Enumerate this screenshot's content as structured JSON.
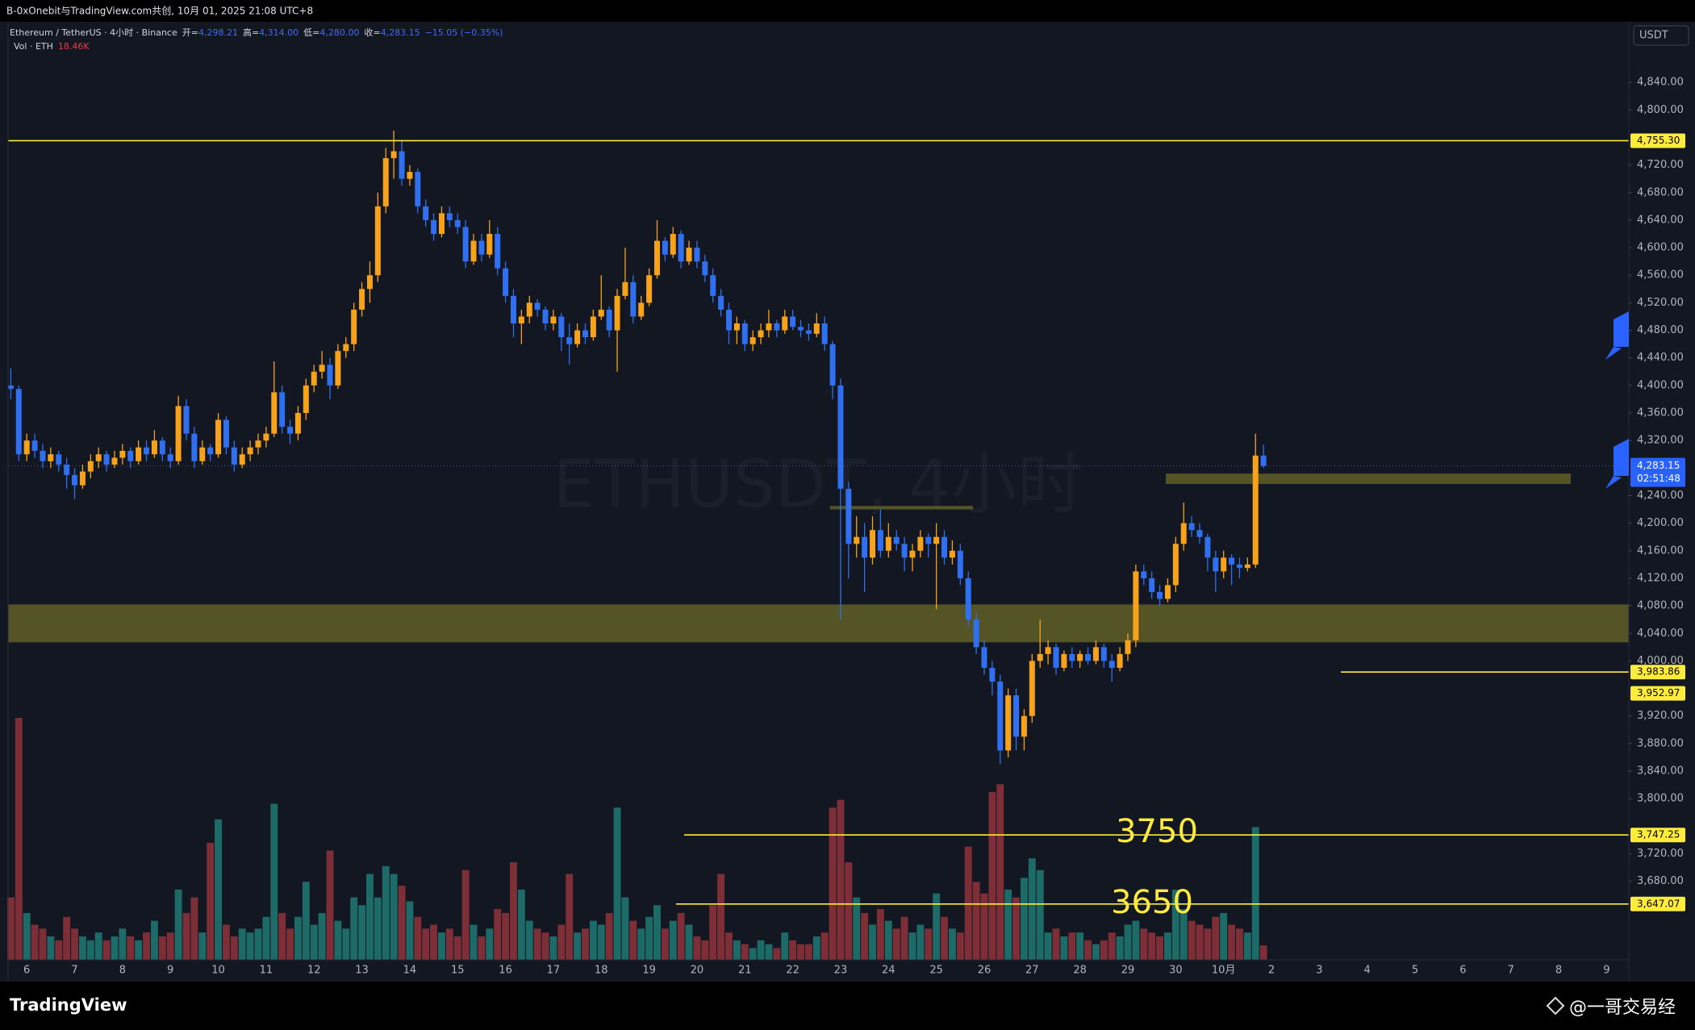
{
  "page": {
    "share_text": "B-0xOnebit与TradingView.com共创, 10月 01, 2025 21:08 UTC+8",
    "brand": "TradingView",
    "watermark_author": "@一哥交易经"
  },
  "chart_data": {
    "type": "candlestick",
    "symbol": "Ethereum / TetherUS · 4小时 · Binance",
    "open_label": "开=",
    "open": "4,298.21",
    "high_label": "高=",
    "high": "4,314.00",
    "low_label": "低=",
    "low": "4,280.00",
    "close_label": "收=",
    "close": "4,283.15",
    "change": "−15.05 (−0.35%)",
    "volume_label": "Vol · ETH",
    "volume_value": "18.46K",
    "watermark": "ETHUSDT, 4小时",
    "currency": "USDT",
    "up_color": "#f7a21b",
    "down_color": "#2f6ff0",
    "volume_up_color": "#1d6b68",
    "volume_down_color": "#7d2e36",
    "level_color": "#ffeb3b",
    "zone_color": "#6b6a2a",
    "ylim": [
      3566,
      4928
    ],
    "yticks": [
      {
        "value": 4840,
        "label": "4,840.00"
      },
      {
        "value": 4800,
        "label": "4,800.00"
      },
      {
        "value": 4720,
        "label": "4,720.00"
      },
      {
        "value": 4680,
        "label": "4,680.00"
      },
      {
        "value": 4640,
        "label": "4,640.00"
      },
      {
        "value": 4600,
        "label": "4,600.00"
      },
      {
        "value": 4560,
        "label": "4,560.00"
      },
      {
        "value": 4520,
        "label": "4,520.00"
      },
      {
        "value": 4480,
        "label": "4,480.00"
      },
      {
        "value": 4440,
        "label": "4,440.00"
      },
      {
        "value": 4400,
        "label": "4,400.00"
      },
      {
        "value": 4360,
        "label": "4,360.00"
      },
      {
        "value": 4320,
        "label": "4,320.00"
      },
      {
        "value": 4240,
        "label": "4,240.00"
      },
      {
        "value": 4200,
        "label": "4,200.00"
      },
      {
        "value": 4160,
        "label": "4,160.00"
      },
      {
        "value": 4120,
        "label": "4,120.00"
      },
      {
        "value": 4080,
        "label": "4,080.00"
      },
      {
        "value": 4040,
        "label": "4,040.00"
      },
      {
        "value": 4000,
        "label": "4,000.00"
      },
      {
        "value": 3920,
        "label": "3,920.00"
      },
      {
        "value": 3880,
        "label": "3,880.00"
      },
      {
        "value": 3840,
        "label": "3,840.00"
      },
      {
        "value": 3800,
        "label": "3,800.00"
      },
      {
        "value": 3720,
        "label": "3,720.00"
      },
      {
        "value": 3680,
        "label": "3,680.00"
      }
    ],
    "x_labels": [
      "6",
      "7",
      "8",
      "9",
      "10",
      "11",
      "12",
      "13",
      "14",
      "15",
      "16",
      "17",
      "18",
      "19",
      "20",
      "21",
      "22",
      "23",
      "24",
      "25",
      "26",
      "27",
      "28",
      "29",
      "30",
      "10月",
      "2",
      "3",
      "4",
      "5",
      "6",
      "7",
      "8",
      "9"
    ],
    "levels": [
      {
        "value": 4755.3,
        "label": "4,755.30"
      },
      {
        "value": 3983.86,
        "label": "3,983.86"
      },
      {
        "value": 3952.97,
        "label": "3,952.97"
      },
      {
        "value": 3747.25,
        "label": "3,747.25"
      },
      {
        "value": 3647.07,
        "label": "3,647.07"
      }
    ],
    "last_price": {
      "value": 4283.15,
      "label": "4,283.15",
      "countdown": "02:51:48"
    },
    "zones": [
      {
        "low": 4027,
        "high": 4082
      },
      {
        "low": 4257,
        "high": 4272
      },
      {
        "low": 4220,
        "high": 4225
      }
    ],
    "annotations": [
      "3750",
      "3650"
    ],
    "candles": [
      [
        4400,
        4425,
        4380,
        4395
      ],
      [
        4395,
        4400,
        4290,
        4300
      ],
      [
        4300,
        4330,
        4290,
        4320
      ],
      [
        4320,
        4330,
        4295,
        4305
      ],
      [
        4305,
        4315,
        4280,
        4290
      ],
      [
        4290,
        4310,
        4280,
        4300
      ],
      [
        4300,
        4305,
        4275,
        4285
      ],
      [
        4285,
        4295,
        4250,
        4270
      ],
      [
        4270,
        4280,
        4235,
        4255
      ],
      [
        4255,
        4285,
        4250,
        4275
      ],
      [
        4275,
        4300,
        4265,
        4290
      ],
      [
        4290,
        4310,
        4280,
        4300
      ],
      [
        4300,
        4305,
        4275,
        4285
      ],
      [
        4285,
        4305,
        4280,
        4295
      ],
      [
        4295,
        4315,
        4285,
        4305
      ],
      [
        4305,
        4310,
        4280,
        4290
      ],
      [
        4290,
        4320,
        4285,
        4310
      ],
      [
        4310,
        4320,
        4290,
        4300
      ],
      [
        4300,
        4335,
        4295,
        4320
      ],
      [
        4320,
        4325,
        4290,
        4300
      ],
      [
        4300,
        4310,
        4280,
        4290
      ],
      [
        4290,
        4385,
        4285,
        4370
      ],
      [
        4370,
        4380,
        4320,
        4330
      ],
      [
        4330,
        4340,
        4280,
        4290
      ],
      [
        4290,
        4320,
        4285,
        4310
      ],
      [
        4310,
        4315,
        4290,
        4300
      ],
      [
        4300,
        4360,
        4295,
        4350
      ],
      [
        4350,
        4355,
        4300,
        4310
      ],
      [
        4310,
        4320,
        4275,
        4285
      ],
      [
        4285,
        4310,
        4280,
        4300
      ],
      [
        4300,
        4320,
        4290,
        4310
      ],
      [
        4310,
        4330,
        4300,
        4320
      ],
      [
        4320,
        4340,
        4310,
        4330
      ],
      [
        4330,
        4435,
        4325,
        4390
      ],
      [
        4390,
        4400,
        4330,
        4340
      ],
      [
        4340,
        4350,
        4315,
        4330
      ],
      [
        4330,
        4370,
        4320,
        4360
      ],
      [
        4360,
        4410,
        4350,
        4400
      ],
      [
        4400,
        4430,
        4390,
        4420
      ],
      [
        4420,
        4450,
        4410,
        4430
      ],
      [
        4430,
        4440,
        4380,
        4400
      ],
      [
        4400,
        4460,
        4395,
        4450
      ],
      [
        4450,
        4470,
        4440,
        4460
      ],
      [
        4460,
        4520,
        4450,
        4510
      ],
      [
        4510,
        4550,
        4500,
        4540
      ],
      [
        4540,
        4580,
        4520,
        4560
      ],
      [
        4560,
        4680,
        4550,
        4660
      ],
      [
        4660,
        4745,
        4650,
        4730
      ],
      [
        4730,
        4770,
        4700,
        4740
      ],
      [
        4740,
        4755,
        4690,
        4700
      ],
      [
        4700,
        4720,
        4690,
        4710
      ],
      [
        4710,
        4715,
        4650,
        4660
      ],
      [
        4660,
        4670,
        4630,
        4640
      ],
      [
        4640,
        4650,
        4610,
        4620
      ],
      [
        4620,
        4660,
        4615,
        4650
      ],
      [
        4650,
        4660,
        4630,
        4640
      ],
      [
        4640,
        4650,
        4620,
        4630
      ],
      [
        4630,
        4640,
        4570,
        4580
      ],
      [
        4580,
        4620,
        4575,
        4610
      ],
      [
        4610,
        4620,
        4580,
        4590
      ],
      [
        4590,
        4640,
        4585,
        4620
      ],
      [
        4620,
        4630,
        4560,
        4570
      ],
      [
        4570,
        4580,
        4520,
        4530
      ],
      [
        4530,
        4540,
        4470,
        4490
      ],
      [
        4490,
        4510,
        4460,
        4500
      ],
      [
        4500,
        4530,
        4490,
        4520
      ],
      [
        4520,
        4525,
        4500,
        4510
      ],
      [
        4510,
        4515,
        4480,
        4490
      ],
      [
        4490,
        4510,
        4480,
        4500
      ],
      [
        4500,
        4505,
        4450,
        4470
      ],
      [
        4470,
        4490,
        4430,
        4460
      ],
      [
        4460,
        4490,
        4455,
        4480
      ],
      [
        4480,
        4490,
        4460,
        4470
      ],
      [
        4470,
        4510,
        4465,
        4500
      ],
      [
        4500,
        4560,
        4495,
        4510
      ],
      [
        4510,
        4515,
        4470,
        4480
      ],
      [
        4480,
        4540,
        4420,
        4530
      ],
      [
        4530,
        4600,
        4525,
        4550
      ],
      [
        4550,
        4560,
        4490,
        4500
      ],
      [
        4500,
        4530,
        4495,
        4520
      ],
      [
        4520,
        4570,
        4515,
        4560
      ],
      [
        4560,
        4640,
        4555,
        4610
      ],
      [
        4610,
        4615,
        4580,
        4590
      ],
      [
        4590,
        4630,
        4585,
        4620
      ],
      [
        4620,
        4625,
        4570,
        4580
      ],
      [
        4580,
        4610,
        4575,
        4600
      ],
      [
        4600,
        4610,
        4570,
        4580
      ],
      [
        4580,
        4590,
        4550,
        4560
      ],
      [
        4560,
        4570,
        4520,
        4530
      ],
      [
        4530,
        4540,
        4500,
        4510
      ],
      [
        4510,
        4520,
        4460,
        4480
      ],
      [
        4480,
        4500,
        4460,
        4490
      ],
      [
        4490,
        4495,
        4450,
        4460
      ],
      [
        4460,
        4480,
        4450,
        4470
      ],
      [
        4470,
        4490,
        4460,
        4480
      ],
      [
        4480,
        4510,
        4470,
        4490
      ],
      [
        4490,
        4495,
        4470,
        4480
      ],
      [
        4480,
        4510,
        4475,
        4500
      ],
      [
        4500,
        4510,
        4480,
        4485
      ],
      [
        4485,
        4495,
        4470,
        4480
      ],
      [
        4480,
        4490,
        4465,
        4475
      ],
      [
        4475,
        4505,
        4470,
        4490
      ],
      [
        4490,
        4500,
        4450,
        4460
      ],
      [
        4460,
        4465,
        4380,
        4400
      ],
      [
        4400,
        4410,
        4060,
        4250
      ],
      [
        4250,
        4260,
        4120,
        4170
      ],
      [
        4170,
        4210,
        4150,
        4180
      ],
      [
        4180,
        4200,
        4100,
        4150
      ],
      [
        4150,
        4210,
        4140,
        4190
      ],
      [
        4190,
        4220,
        4150,
        4160
      ],
      [
        4160,
        4200,
        4150,
        4180
      ],
      [
        4180,
        4190,
        4160,
        4170
      ],
      [
        4170,
        4180,
        4130,
        4150
      ],
      [
        4150,
        4170,
        4130,
        4160
      ],
      [
        4160,
        4190,
        4150,
        4180
      ],
      [
        4180,
        4185,
        4150,
        4170
      ],
      [
        4170,
        4200,
        4075,
        4180
      ],
      [
        4180,
        4190,
        4140,
        4150
      ],
      [
        4150,
        4175,
        4140,
        4160
      ],
      [
        4160,
        4170,
        4110,
        4120
      ],
      [
        4120,
        4130,
        4050,
        4060
      ],
      [
        4060,
        4070,
        4010,
        4020
      ],
      [
        4020,
        4030,
        3980,
        3990
      ],
      [
        3990,
        4000,
        3950,
        3970
      ],
      [
        3970,
        3980,
        3850,
        3870
      ],
      [
        3870,
        3960,
        3860,
        3950
      ],
      [
        3950,
        3960,
        3870,
        3890
      ],
      [
        3890,
        3930,
        3870,
        3920
      ],
      [
        3920,
        4010,
        3910,
        4000
      ],
      [
        4000,
        4060,
        3990,
        4010
      ],
      [
        4010,
        4030,
        3995,
        4020
      ],
      [
        4020,
        4025,
        3980,
        3990
      ],
      [
        3990,
        4015,
        3985,
        4010
      ],
      [
        4010,
        4020,
        3990,
        4000
      ],
      [
        4000,
        4015,
        3990,
        4010
      ],
      [
        4010,
        4020,
        3995,
        4000
      ],
      [
        4000,
        4030,
        3995,
        4020
      ],
      [
        4020,
        4025,
        3990,
        4000
      ],
      [
        4000,
        4010,
        3970,
        3990
      ],
      [
        3990,
        4020,
        3985,
        4010
      ],
      [
        4010,
        4040,
        4000,
        4030
      ],
      [
        4030,
        4140,
        4020,
        4130
      ],
      [
        4130,
        4140,
        4110,
        4120
      ],
      [
        4120,
        4130,
        4090,
        4100
      ],
      [
        4100,
        4110,
        4080,
        4090
      ],
      [
        4090,
        4120,
        4085,
        4110
      ],
      [
        4110,
        4180,
        4100,
        4170
      ],
      [
        4170,
        4230,
        4160,
        4200
      ],
      [
        4200,
        4210,
        4180,
        4190
      ],
      [
        4190,
        4200,
        4170,
        4180
      ],
      [
        4180,
        4185,
        4130,
        4150
      ],
      [
        4150,
        4160,
        4100,
        4130
      ],
      [
        4130,
        4160,
        4120,
        4150
      ],
      [
        4150,
        4155,
        4110,
        4140
      ],
      [
        4140,
        4150,
        4120,
        4135
      ],
      [
        4135,
        4150,
        4130,
        4140
      ],
      [
        4140,
        4330,
        4135,
        4298.21
      ],
      [
        4298.21,
        4314,
        4280,
        4283.15
      ]
    ],
    "volumes": [
      80000,
      310000,
      60000,
      45000,
      40000,
      30000,
      25000,
      55000,
      40000,
      30000,
      25000,
      35000,
      25000,
      30000,
      40000,
      30000,
      25000,
      35000,
      50000,
      30000,
      35000,
      90000,
      60000,
      80000,
      35000,
      150000,
      180000,
      45000,
      30000,
      40000,
      35000,
      40000,
      55000,
      200000,
      60000,
      40000,
      55000,
      100000,
      45000,
      60000,
      140000,
      50000,
      40000,
      80000,
      70000,
      110000,
      80000,
      120000,
      110000,
      95000,
      75000,
      55000,
      40000,
      45000,
      35000,
      40000,
      30000,
      115000,
      45000,
      30000,
      40000,
      65000,
      60000,
      125000,
      90000,
      50000,
      40000,
      35000,
      30000,
      45000,
      110000,
      35000,
      40000,
      50000,
      45000,
      60000,
      195000,
      80000,
      50000,
      40000,
      55000,
      70000,
      40000,
      50000,
      60000,
      45000,
      30000,
      25000,
      70000,
      110000,
      35000,
      25000,
      20000,
      15000,
      25000,
      20000,
      15000,
      35000,
      25000,
      20000,
      20000,
      30000,
      35000,
      195000,
      205000,
      125000,
      80000,
      60000,
      45000,
      65000,
      50000,
      40000,
      55000,
      35000,
      45000,
      40000,
      85000,
      55000,
      40000,
      35000,
      145000,
      100000,
      85000,
      215000,
      225000,
      90000,
      80000,
      105000,
      130000,
      115000,
      35000,
      40000,
      30000,
      35000,
      35000,
      25000,
      20000,
      25000,
      35000,
      30000,
      45000,
      50000,
      40000,
      35000,
      30000,
      35000,
      90000,
      65000,
      50000,
      45000,
      40000,
      55000,
      60000,
      45000,
      40000,
      35000,
      170000,
      18460
    ]
  }
}
